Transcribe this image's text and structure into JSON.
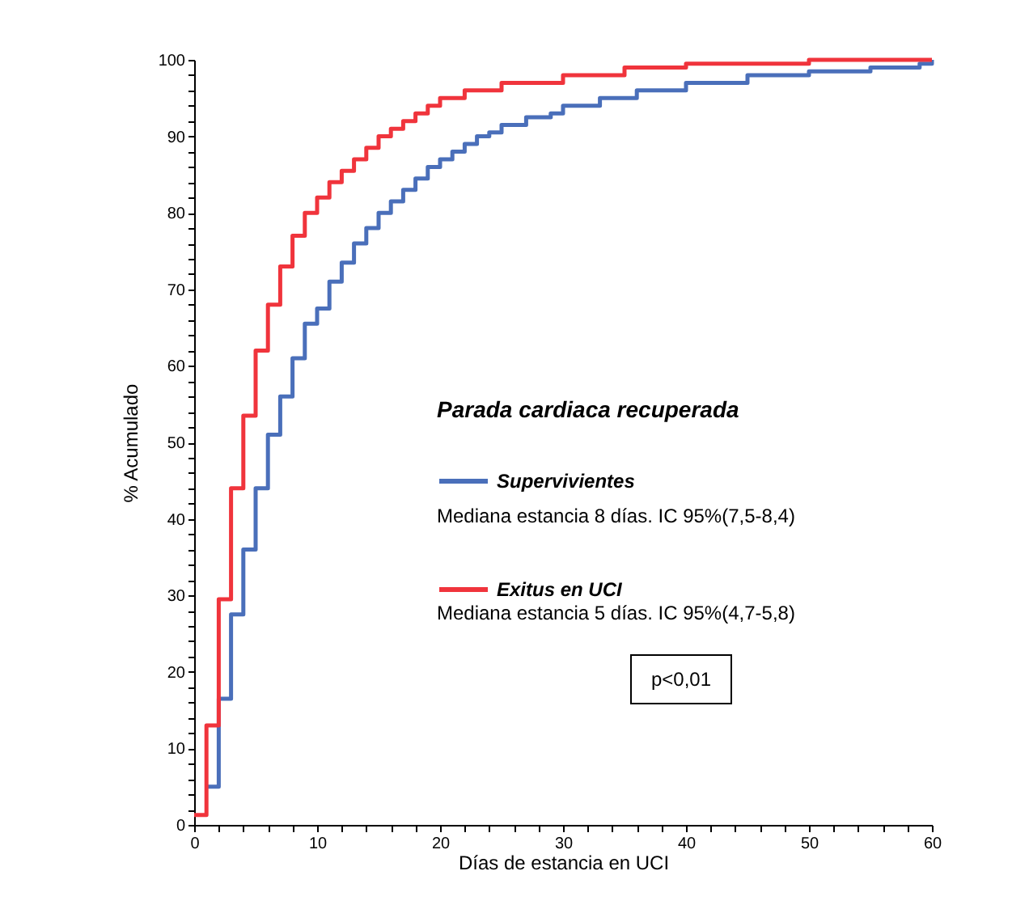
{
  "chart_data": {
    "type": "step",
    "xlabel": "Días de estancia en UCI",
    "ylabel": "% Acumulado",
    "legend_title": "Parada cardiaca recuperada",
    "legend": "right",
    "annotations": [
      "Mediana estancia  8 días. IC 95%(7,5-8,4)",
      "Mediana estancia  5 días. IC 95%(4,7-5,8)",
      "p<0,01"
    ],
    "xlim": [
      0,
      60
    ],
    "ylim": [
      0,
      100
    ],
    "xticks": [
      0,
      {
        "value": 2,
        "label": null
      },
      {
        "value": 4,
        "label": null
      },
      {
        "value": 6,
        "label": null
      },
      {
        "value": 8,
        "label": null
      },
      10,
      {
        "value": 12,
        "label": null
      },
      {
        "value": 14,
        "label": null
      },
      {
        "value": 16,
        "label": null
      },
      {
        "value": 18,
        "label": null
      },
      20,
      {
        "value": 22,
        "label": null
      },
      {
        "value": 24,
        "label": null
      },
      {
        "value": 26,
        "label": null
      },
      {
        "value": 28,
        "label": null
      },
      30,
      {
        "value": 32,
        "label": null
      },
      {
        "value": 34,
        "label": null
      },
      {
        "value": 36,
        "label": null
      },
      {
        "value": 38,
        "label": null
      },
      40,
      {
        "value": 42,
        "label": null
      },
      {
        "value": 44,
        "label": null
      },
      {
        "value": 46,
        "label": null
      },
      {
        "value": 48,
        "label": null
      },
      50,
      {
        "value": 52,
        "label": null
      },
      {
        "value": 54,
        "label": null
      },
      {
        "value": 56,
        "label": null
      },
      {
        "value": 58,
        "label": null
      },
      60
    ],
    "yticks": [
      0,
      {
        "value": 2,
        "label": null
      },
      {
        "value": 4,
        "label": null
      },
      {
        "value": 6,
        "label": null
      },
      {
        "value": 8,
        "label": null
      },
      10,
      {
        "value": 12,
        "label": null
      },
      {
        "value": 14,
        "label": null
      },
      {
        "value": 16,
        "label": null
      },
      {
        "value": 18,
        "label": null
      },
      20,
      {
        "value": 22,
        "label": null
      },
      {
        "value": 24,
        "label": null
      },
      {
        "value": 26,
        "label": null
      },
      {
        "value": 28,
        "label": null
      },
      30,
      {
        "value": 32,
        "label": null
      },
      {
        "value": 34,
        "label": null
      },
      {
        "value": 36,
        "label": null
      },
      {
        "value": 38,
        "label": null
      },
      40,
      {
        "value": 42,
        "label": null
      },
      {
        "value": 44,
        "label": null
      },
      {
        "value": 46,
        "label": null
      },
      {
        "value": 48,
        "label": null
      },
      50,
      {
        "value": 52,
        "label": null
      },
      {
        "value": 54,
        "label": null
      },
      {
        "value": 56,
        "label": null
      },
      {
        "value": 58,
        "label": null
      },
      60,
      {
        "value": 62,
        "label": null
      },
      {
        "value": 64,
        "label": null
      },
      {
        "value": 66,
        "label": null
      },
      {
        "value": 68,
        "label": null
      },
      70,
      {
        "value": 72,
        "label": null
      },
      {
        "value": 74,
        "label": null
      },
      {
        "value": 76,
        "label": null
      },
      {
        "value": 78,
        "label": null
      },
      80,
      {
        "value": 82,
        "label": null
      },
      {
        "value": 84,
        "label": null
      },
      {
        "value": 86,
        "label": null
      },
      {
        "value": 88,
        "label": null
      },
      90,
      {
        "value": 92,
        "label": null
      },
      {
        "value": 94,
        "label": null
      },
      {
        "value": 96,
        "label": null
      },
      {
        "value": 98,
        "label": null
      },
      100
    ],
    "grid": false,
    "marker": "none",
    "line_style": "solid",
    "series": [
      {
        "name": "Supervivientes",
        "color": "#4a6fba",
        "x": [
          1,
          2,
          3,
          4,
          5,
          6,
          7,
          8,
          9,
          10,
          11,
          12,
          13,
          14,
          15,
          16,
          17,
          18,
          19,
          20,
          21,
          22,
          23,
          24,
          25,
          27,
          29,
          30,
          33,
          36,
          40,
          45,
          50,
          55,
          59,
          60
        ],
        "values": [
          5,
          16.5,
          27.5,
          36,
          44,
          51,
          56,
          61,
          65.5,
          67.5,
          71,
          73.5,
          76,
          78,
          80,
          81.5,
          83,
          84.5,
          86,
          87,
          88,
          89,
          90,
          90.5,
          91.5,
          92.5,
          93,
          94,
          95,
          96,
          97,
          98,
          98.5,
          99,
          99.5,
          100
        ]
      },
      {
        "name": "Exitus en UCI",
        "color": "#f0343c",
        "x": [
          0,
          1,
          2,
          3,
          4,
          5,
          6,
          7,
          8,
          9,
          10,
          11,
          12,
          13,
          14,
          15,
          16,
          17,
          18,
          19,
          20,
          22,
          25,
          30,
          35,
          40,
          50,
          60
        ],
        "values": [
          1.3,
          13,
          29.5,
          44,
          53.5,
          62,
          68,
          73,
          77,
          80,
          82,
          84,
          85.5,
          87,
          88.5,
          90,
          91,
          92,
          93,
          94,
          95,
          96,
          97,
          98,
          99,
          99.5,
          100,
          100
        ]
      }
    ]
  }
}
